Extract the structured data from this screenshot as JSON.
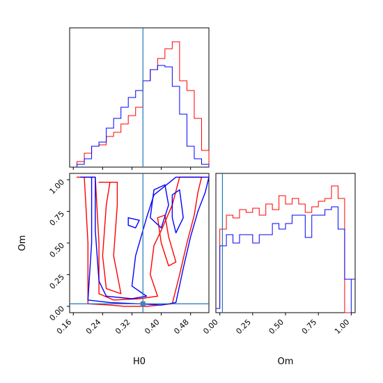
{
  "chart_data": [
    {
      "type": "histogram",
      "panel": "H0 marginal",
      "xlim": [
        0.15,
        0.53
      ],
      "truth": 0.35,
      "bin_edges": [
        0.17,
        0.19,
        0.21,
        0.23,
        0.25,
        0.27,
        0.29,
        0.31,
        0.33,
        0.35,
        0.37,
        0.39,
        0.41,
        0.43,
        0.45,
        0.47,
        0.49,
        0.51,
        0.53
      ],
      "series": [
        {
          "color": "#ff0000",
          "values": [
            0.04,
            0.1,
            0.15,
            0.16,
            0.22,
            0.25,
            0.31,
            0.37,
            0.43,
            0.62,
            0.7,
            0.78,
            0.85,
            0.9,
            0.62,
            0.55,
            0.35,
            0.12
          ]
        },
        {
          "color": "#0000ff",
          "values": [
            0.02,
            0.06,
            0.15,
            0.18,
            0.28,
            0.35,
            0.43,
            0.5,
            0.55,
            0.62,
            0.7,
            0.73,
            0.72,
            0.58,
            0.38,
            0.15,
            0.06,
            0.02
          ]
        }
      ]
    },
    {
      "type": "histogram",
      "panel": "Om marginal",
      "xlim": [
        -0.03,
        1.03
      ],
      "truth": 0.02,
      "bin_edges": [
        0.0,
        0.05,
        0.1,
        0.15,
        0.2,
        0.25,
        0.3,
        0.35,
        0.4,
        0.45,
        0.5,
        0.55,
        0.6,
        0.65,
        0.7,
        0.75,
        0.8,
        0.85,
        0.9,
        0.95,
        1.0
      ],
      "series": [
        {
          "color": "#ff0000",
          "values": [
            0.6,
            0.7,
            0.68,
            0.74,
            0.72,
            0.75,
            0.7,
            0.78,
            0.74,
            0.84,
            0.78,
            0.82,
            0.78,
            0.72,
            0.76,
            0.8,
            0.82,
            0.91,
            0.82,
            0.0
          ]
        },
        {
          "color": "#0000ff",
          "values": [
            0.48,
            0.56,
            0.5,
            0.56,
            0.56,
            0.5,
            0.56,
            0.56,
            0.64,
            0.6,
            0.64,
            0.7,
            0.7,
            0.54,
            0.7,
            0.7,
            0.74,
            0.76,
            0.6,
            0.24
          ]
        }
      ]
    },
    {
      "type": "contour",
      "panel": "Om vs H0",
      "xlabel": "H0",
      "ylabel": "Om",
      "xlim": [
        0.15,
        0.53
      ],
      "ylim": [
        -0.05,
        1.05
      ],
      "xticks": [
        "0.16",
        "0.24",
        "0.32",
        "0.40",
        "0.48"
      ],
      "yticks": [
        "0.00",
        "0.25",
        "0.50",
        "0.75",
        "1.00"
      ],
      "truth": {
        "H0": 0.35,
        "Om": 0.02
      },
      "series": [
        {
          "color": "#ff0000",
          "contours": [
            [
              [
                0.17,
                1.02
              ],
              [
                0.19,
                1.02
              ],
              [
                0.2,
                0.5
              ],
              [
                0.2,
                0.02
              ],
              [
                0.26,
                0.01
              ],
              [
                0.3,
                0.0
              ],
              [
                0.36,
                0.0
              ],
              [
                0.43,
                0.02
              ],
              [
                0.45,
                0.25
              ],
              [
                0.47,
                0.5
              ],
              [
                0.49,
                0.72
              ],
              [
                0.5,
                0.9
              ],
              [
                0.51,
                1.02
              ],
              [
                0.45,
                1.02
              ],
              [
                0.43,
                0.8
              ],
              [
                0.4,
                0.6
              ],
              [
                0.38,
                0.48
              ],
              [
                0.37,
                0.25
              ],
              [
                0.39,
                0.08
              ],
              [
                0.34,
                0.06
              ],
              [
                0.27,
                0.05
              ],
              [
                0.23,
                0.1
              ],
              [
                0.23,
                0.5
              ],
              [
                0.22,
                1.02
              ]
            ],
            [
              [
                0.23,
                0.98
              ],
              [
                0.26,
                0.98
              ],
              [
                0.25,
                0.8
              ],
              [
                0.24,
                0.4
              ],
              [
                0.25,
                0.14
              ],
              [
                0.29,
                0.1
              ],
              [
                0.27,
                0.4
              ],
              [
                0.28,
                0.8
              ],
              [
                0.28,
                0.98
              ]
            ],
            [
              [
                0.39,
                0.7
              ],
              [
                0.41,
                0.72
              ],
              [
                0.42,
                0.55
              ],
              [
                0.44,
                0.35
              ],
              [
                0.42,
                0.32
              ],
              [
                0.4,
                0.5
              ]
            ]
          ]
        },
        {
          "color": "#0000ff",
          "contours": [
            [
              [
                0.18,
                1.02
              ],
              [
                0.21,
                1.02
              ],
              [
                0.21,
                0.5
              ],
              [
                0.2,
                0.05
              ],
              [
                0.26,
                0.03
              ],
              [
                0.34,
                0.02
              ],
              [
                0.4,
                0.01
              ],
              [
                0.44,
                0.03
              ],
              [
                0.46,
                0.3
              ],
              [
                0.48,
                0.55
              ],
              [
                0.5,
                0.75
              ],
              [
                0.52,
                0.9
              ],
              [
                0.53,
                1.02
              ],
              [
                0.44,
                1.02
              ],
              [
                0.38,
                0.88
              ],
              [
                0.36,
                0.7
              ],
              [
                0.33,
                0.4
              ],
              [
                0.32,
                0.16
              ],
              [
                0.36,
                0.08
              ],
              [
                0.32,
                0.06
              ],
              [
                0.25,
                0.08
              ],
              [
                0.23,
                0.2
              ],
              [
                0.22,
                0.6
              ],
              [
                0.22,
                1.02
              ]
            ],
            [
              [
                0.38,
                0.92
              ],
              [
                0.41,
                0.96
              ],
              [
                0.42,
                0.8
              ],
              [
                0.4,
                0.62
              ],
              [
                0.37,
                0.7
              ]
            ],
            [
              [
                0.43,
                0.88
              ],
              [
                0.45,
                0.92
              ],
              [
                0.46,
                0.7
              ],
              [
                0.44,
                0.58
              ],
              [
                0.43,
                0.7
              ]
            ],
            [
              [
                0.31,
                0.7
              ],
              [
                0.34,
                0.68
              ],
              [
                0.33,
                0.62
              ],
              [
                0.31,
                0.64
              ]
            ]
          ]
        }
      ]
    }
  ]
}
